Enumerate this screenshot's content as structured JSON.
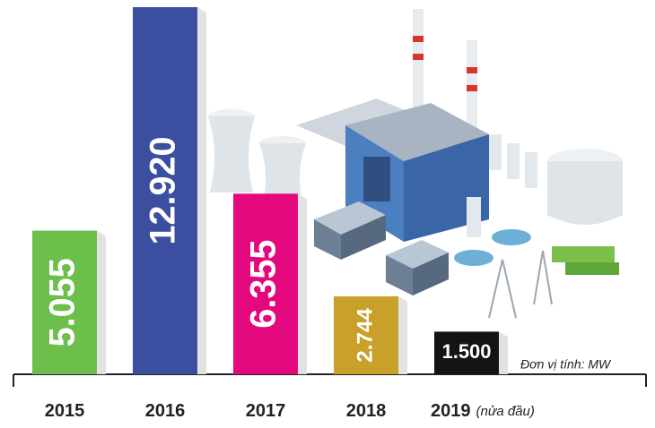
{
  "chart_data": {
    "type": "bar",
    "categories": [
      "2015",
      "2016",
      "2017",
      "2018",
      "2019"
    ],
    "category_note": "(nửa đầu)",
    "values": [
      5055,
      12920,
      6355,
      2744,
      1500
    ],
    "value_labels": [
      "5.055",
      "12.920",
      "6.355",
      "2.744",
      "1.500"
    ],
    "colors": [
      "#6cbf4a",
      "#3b4ea0",
      "#e4087f",
      "#c9a12a",
      "#141414"
    ],
    "unit_label": "Đơn vị tính: MW"
  }
}
